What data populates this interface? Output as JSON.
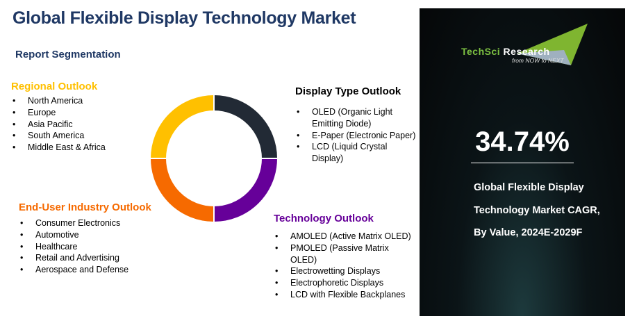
{
  "title": "Global Flexible Display Technology Market",
  "subtitle": "Report Segmentation",
  "colors": {
    "regional": "#ffc000",
    "display": "#222a35",
    "enduser": "#f66a00",
    "technology": "#660099",
    "title": "#1f3864"
  },
  "regional": {
    "title": "Regional Outlook",
    "items": [
      "North America",
      "Europe",
      "Asia Pacific",
      "South America",
      "Middle East & Africa"
    ]
  },
  "display": {
    "title": "Display Type Outlook",
    "items": [
      "OLED (Organic Light Emitting Diode)",
      "E-Paper (Electronic Paper)",
      "LCD (Liquid Crystal Display)"
    ]
  },
  "enduser": {
    "title": "End-User Industry Outlook",
    "items": [
      "Consumer Electronics",
      "Automotive",
      "Healthcare",
      "Retail and Advertising",
      "Aerospace and Defense"
    ]
  },
  "technology": {
    "title": "Technology Outlook",
    "items": [
      "AMOLED (Active Matrix OLED)",
      "PMOLED (Passive Matrix OLED)",
      "Electrowetting Displays",
      "Electrophoretic Displays",
      "LCD with Flexible Backplanes"
    ]
  },
  "logo": {
    "brand_a": "TechSci",
    "brand_b": "Research",
    "tagline": "from NOW to NEXT"
  },
  "cagr": {
    "value": "34.74%",
    "description": "Global Flexible Display Technology Market CAGR, By Value, 2024E-2029F"
  }
}
